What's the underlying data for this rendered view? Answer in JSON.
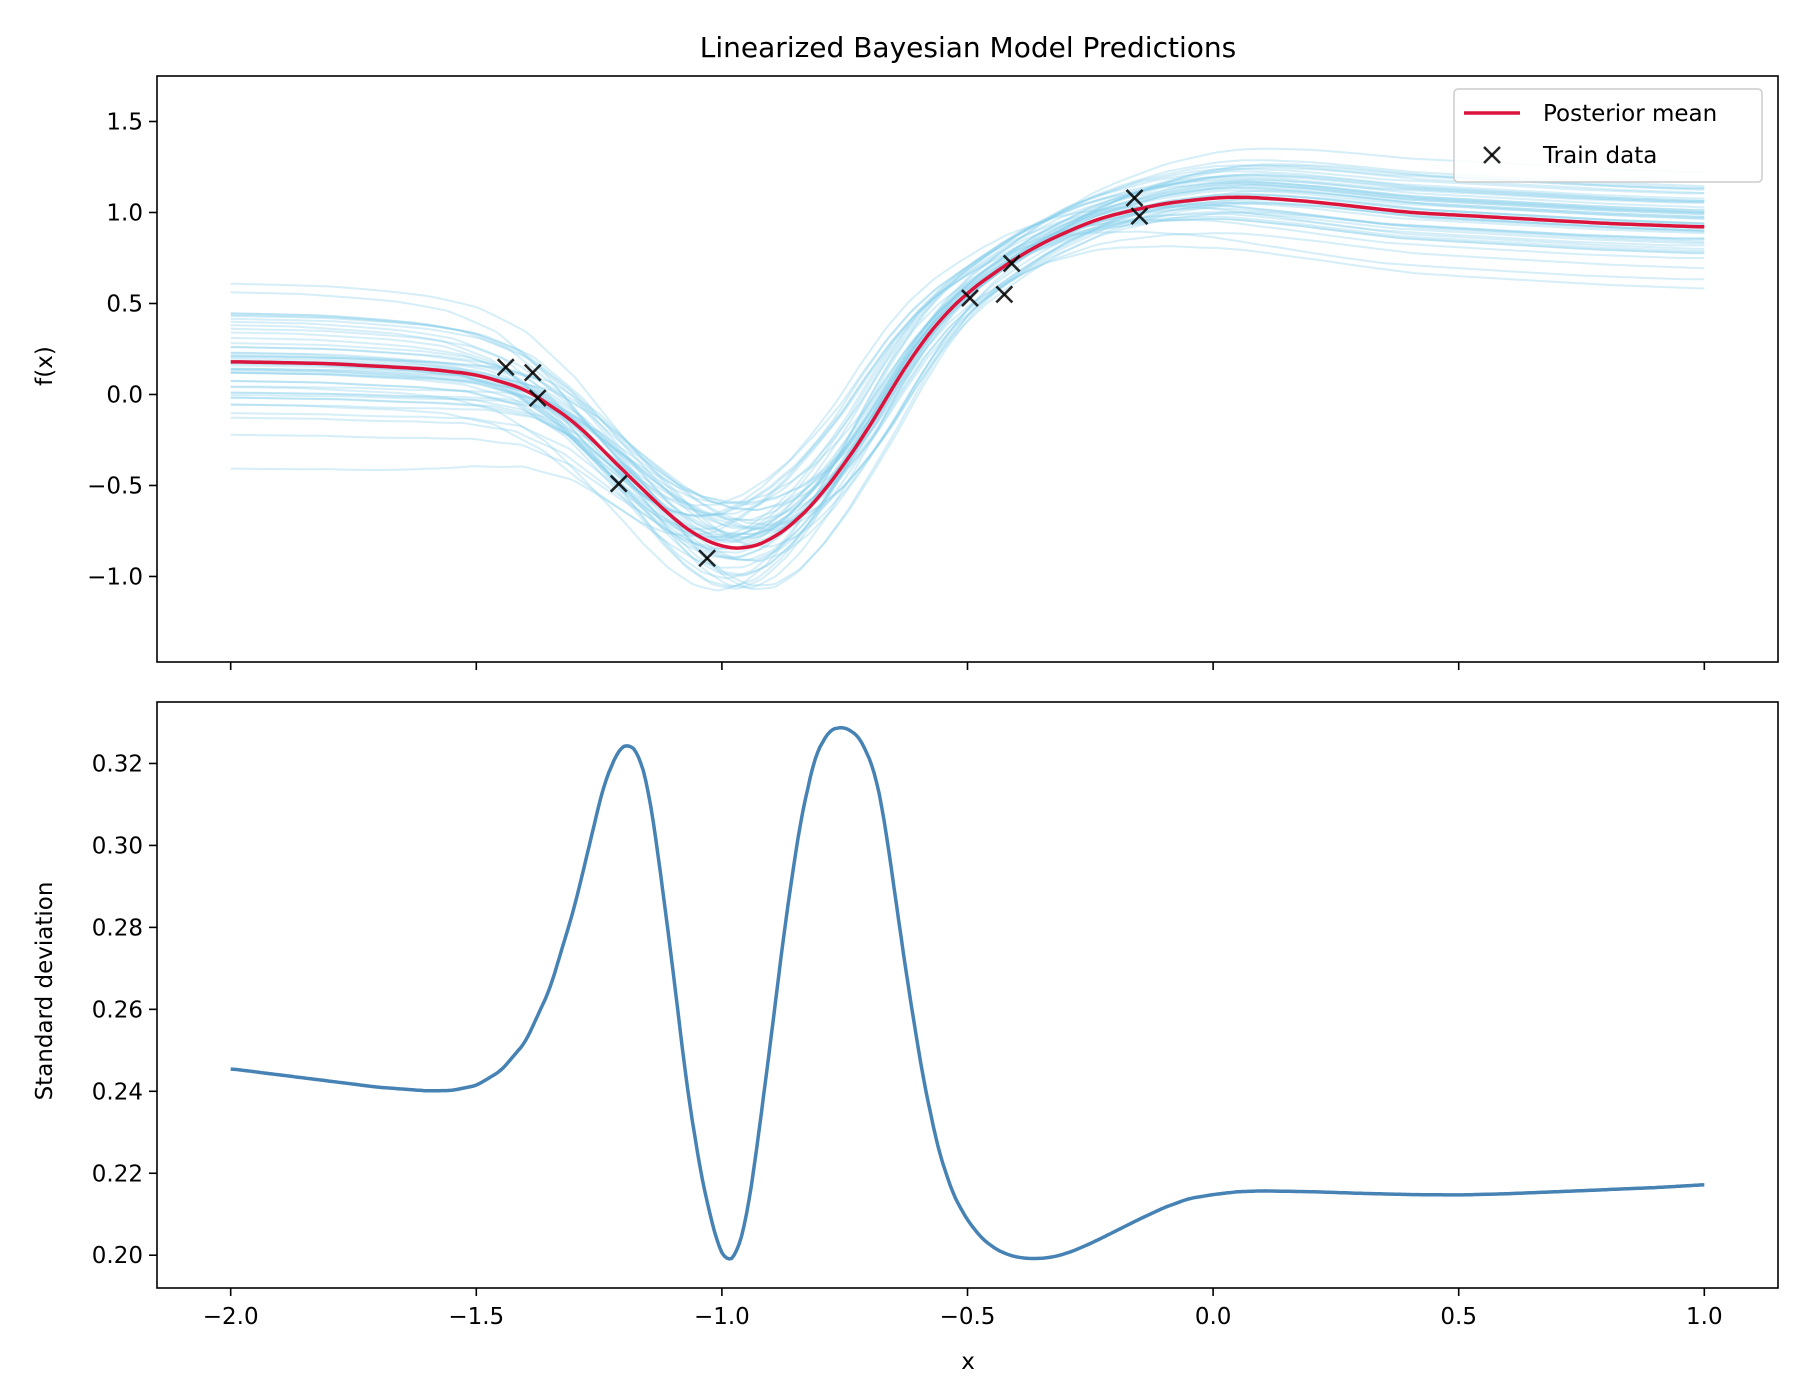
{
  "chart_data": [
    {
      "type": "line",
      "title": "Linearized Bayesian Model Predictions",
      "xlabel": "",
      "ylabel": "f(x)",
      "xlim": [
        -2.15,
        1.15
      ],
      "ylim": [
        -1.47,
        1.75
      ],
      "xticks": [
        -2.0,
        -1.5,
        -1.0,
        -0.5,
        0.0,
        0.5,
        1.0
      ],
      "yticks": [
        -1.0,
        -0.5,
        0.0,
        0.5,
        1.0,
        1.5
      ],
      "ytick_labels": [
        "−1.0",
        "−0.5",
        "0.0",
        "0.5",
        "1.0",
        "1.5"
      ],
      "legend": {
        "position": "top-right",
        "entries": [
          "Posterior mean",
          "Train data"
        ]
      },
      "colors": {
        "mean": "#dc143c",
        "samples": "#87ceeb",
        "train": "#000000"
      },
      "posterior_mean": {
        "name": "Posterior mean",
        "x": [
          -2.0,
          -1.8,
          -1.6,
          -1.5,
          -1.4,
          -1.3,
          -1.2,
          -1.1,
          -1.05,
          -1.0,
          -0.95,
          -0.9,
          -0.85,
          -0.8,
          -0.75,
          -0.7,
          -0.65,
          -0.6,
          -0.55,
          -0.5,
          -0.45,
          -0.4,
          -0.35,
          -0.3,
          -0.25,
          -0.2,
          -0.1,
          0.0,
          0.05,
          0.1,
          0.2,
          0.3,
          0.4,
          0.5,
          0.6,
          0.7,
          0.8,
          0.9,
          1.0
        ],
        "y": [
          0.18,
          0.17,
          0.14,
          0.11,
          0.03,
          -0.15,
          -0.42,
          -0.68,
          -0.78,
          -0.84,
          -0.85,
          -0.8,
          -0.7,
          -0.56,
          -0.38,
          -0.18,
          0.05,
          0.26,
          0.43,
          0.56,
          0.66,
          0.75,
          0.83,
          0.89,
          0.95,
          0.99,
          1.05,
          1.08,
          1.085,
          1.08,
          1.06,
          1.03,
          1.0,
          0.985,
          0.97,
          0.955,
          0.94,
          0.93,
          0.92
        ]
      },
      "posterior_samples": {
        "count": 50,
        "y_range_left": [
          -0.36,
          0.82
        ],
        "y_range_right": [
          0.46,
          1.28
        ],
        "y_range_min_region": [
          -1.31,
          -0.5
        ]
      },
      "train_data": {
        "name": "Train data",
        "points": [
          {
            "x": -1.44,
            "y": 0.15
          },
          {
            "x": -1.385,
            "y": 0.12
          },
          {
            "x": -1.375,
            "y": -0.02
          },
          {
            "x": -1.21,
            "y": -0.49
          },
          {
            "x": -1.03,
            "y": -0.9
          },
          {
            "x": -0.495,
            "y": 0.53
          },
          {
            "x": -0.425,
            "y": 0.55
          },
          {
            "x": -0.41,
            "y": 0.72
          },
          {
            "x": -0.16,
            "y": 1.08
          },
          {
            "x": -0.15,
            "y": 0.98
          }
        ]
      }
    },
    {
      "type": "line",
      "title": "",
      "xlabel": "x",
      "ylabel": "Standard deviation",
      "xlim": [
        -2.15,
        1.15
      ],
      "ylim": [
        0.192,
        0.335
      ],
      "xticks": [
        -2.0,
        -1.5,
        -1.0,
        -0.5,
        0.0,
        0.5,
        1.0
      ],
      "xtick_labels": [
        "−2.0",
        "−1.5",
        "−1.0",
        "−0.5",
        "0.0",
        "0.5",
        "1.0"
      ],
      "yticks": [
        0.2,
        0.22,
        0.24,
        0.26,
        0.28,
        0.3,
        0.32
      ],
      "ytick_labels": [
        "0.20",
        "0.22",
        "0.24",
        "0.26",
        "0.28",
        "0.30",
        "0.32"
      ],
      "colors": {
        "line": "#4682b4"
      },
      "series": [
        {
          "x": [
            -2.0,
            -1.9,
            -1.8,
            -1.7,
            -1.6,
            -1.55,
            -1.5,
            -1.45,
            -1.4,
            -1.35,
            -1.3,
            -1.27,
            -1.24,
            -1.21,
            -1.19,
            -1.17,
            -1.15,
            -1.13,
            -1.1,
            -1.07,
            -1.04,
            -1.01,
            -0.99,
            -0.97,
            -0.95,
            -0.93,
            -0.9,
            -0.87,
            -0.84,
            -0.81,
            -0.78,
            -0.75,
            -0.72,
            -0.69,
            -0.67,
            -0.65,
            -0.62,
            -0.59,
            -0.56,
            -0.53,
            -0.5,
            -0.47,
            -0.44,
            -0.41,
            -0.38,
            -0.35,
            -0.32,
            -0.29,
            -0.26,
            -0.23,
            -0.2,
            -0.15,
            -0.1,
            -0.05,
            0.0,
            0.05,
            0.1,
            0.2,
            0.3,
            0.4,
            0.5,
            0.6,
            0.7,
            0.8,
            0.9,
            1.0
          ],
          "y": [
            0.2455,
            0.244,
            0.2425,
            0.241,
            0.2401,
            0.2402,
            0.2414,
            0.245,
            0.252,
            0.265,
            0.285,
            0.3,
            0.315,
            0.3235,
            0.3248,
            0.3225,
            0.314,
            0.298,
            0.27,
            0.24,
            0.218,
            0.203,
            0.1983,
            0.2002,
            0.209,
            0.225,
            0.253,
            0.282,
            0.306,
            0.322,
            0.3283,
            0.3289,
            0.3265,
            0.3185,
            0.307,
            0.29,
            0.265,
            0.243,
            0.226,
            0.215,
            0.2085,
            0.204,
            0.2013,
            0.1998,
            0.1992,
            0.1992,
            0.1997,
            0.2008,
            0.2023,
            0.204,
            0.2058,
            0.2088,
            0.2116,
            0.2138,
            0.2148,
            0.2155,
            0.2157,
            0.2155,
            0.2151,
            0.2148,
            0.2147,
            0.215,
            0.2155,
            0.216,
            0.2165,
            0.2172
          ]
        }
      ]
    }
  ]
}
